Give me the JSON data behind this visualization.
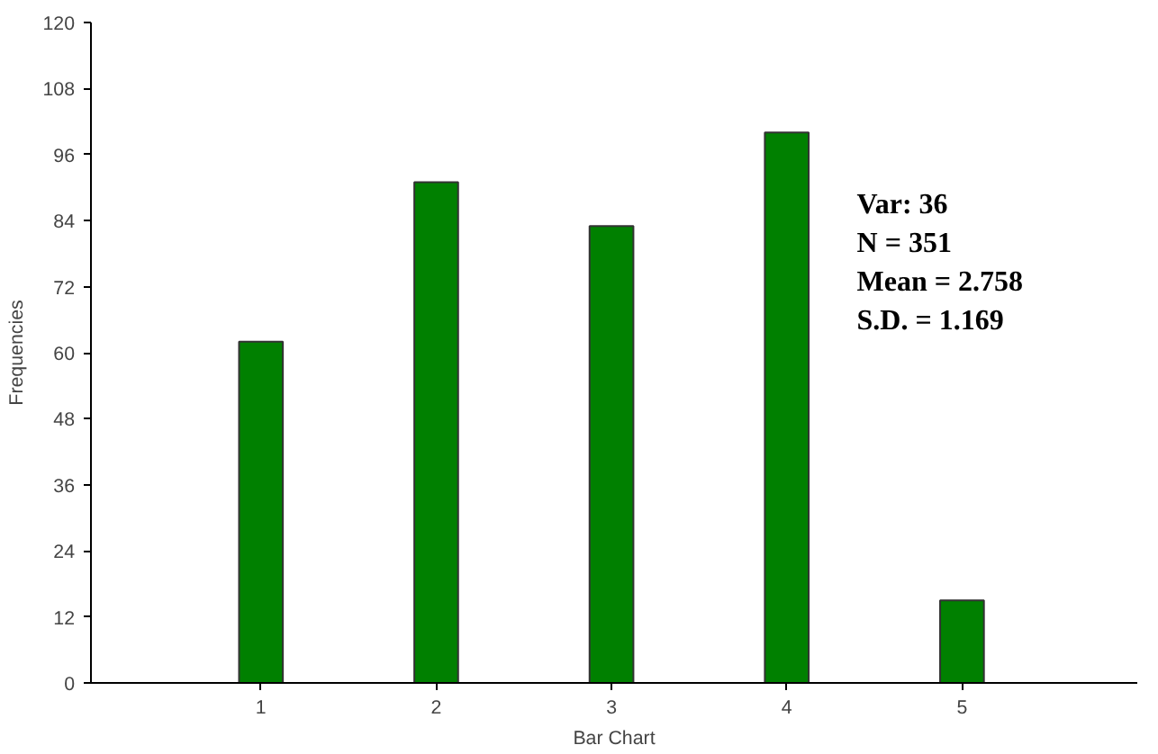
{
  "chart_data": {
    "type": "bar",
    "xlabel": "Bar Chart",
    "ylabel": "Frequencies",
    "categories": [
      "1",
      "2",
      "3",
      "4",
      "5"
    ],
    "values": [
      62,
      91,
      83,
      100,
      15
    ],
    "color": "#008000",
    "ylim": [
      0,
      120
    ],
    "yticks": [
      0,
      12,
      24,
      36,
      48,
      60,
      72,
      84,
      96,
      108,
      120
    ],
    "grid": false,
    "annotations": [
      "Var: 36",
      "N = 351",
      "Mean = 2.758",
      "S.D. = 1.169"
    ]
  }
}
